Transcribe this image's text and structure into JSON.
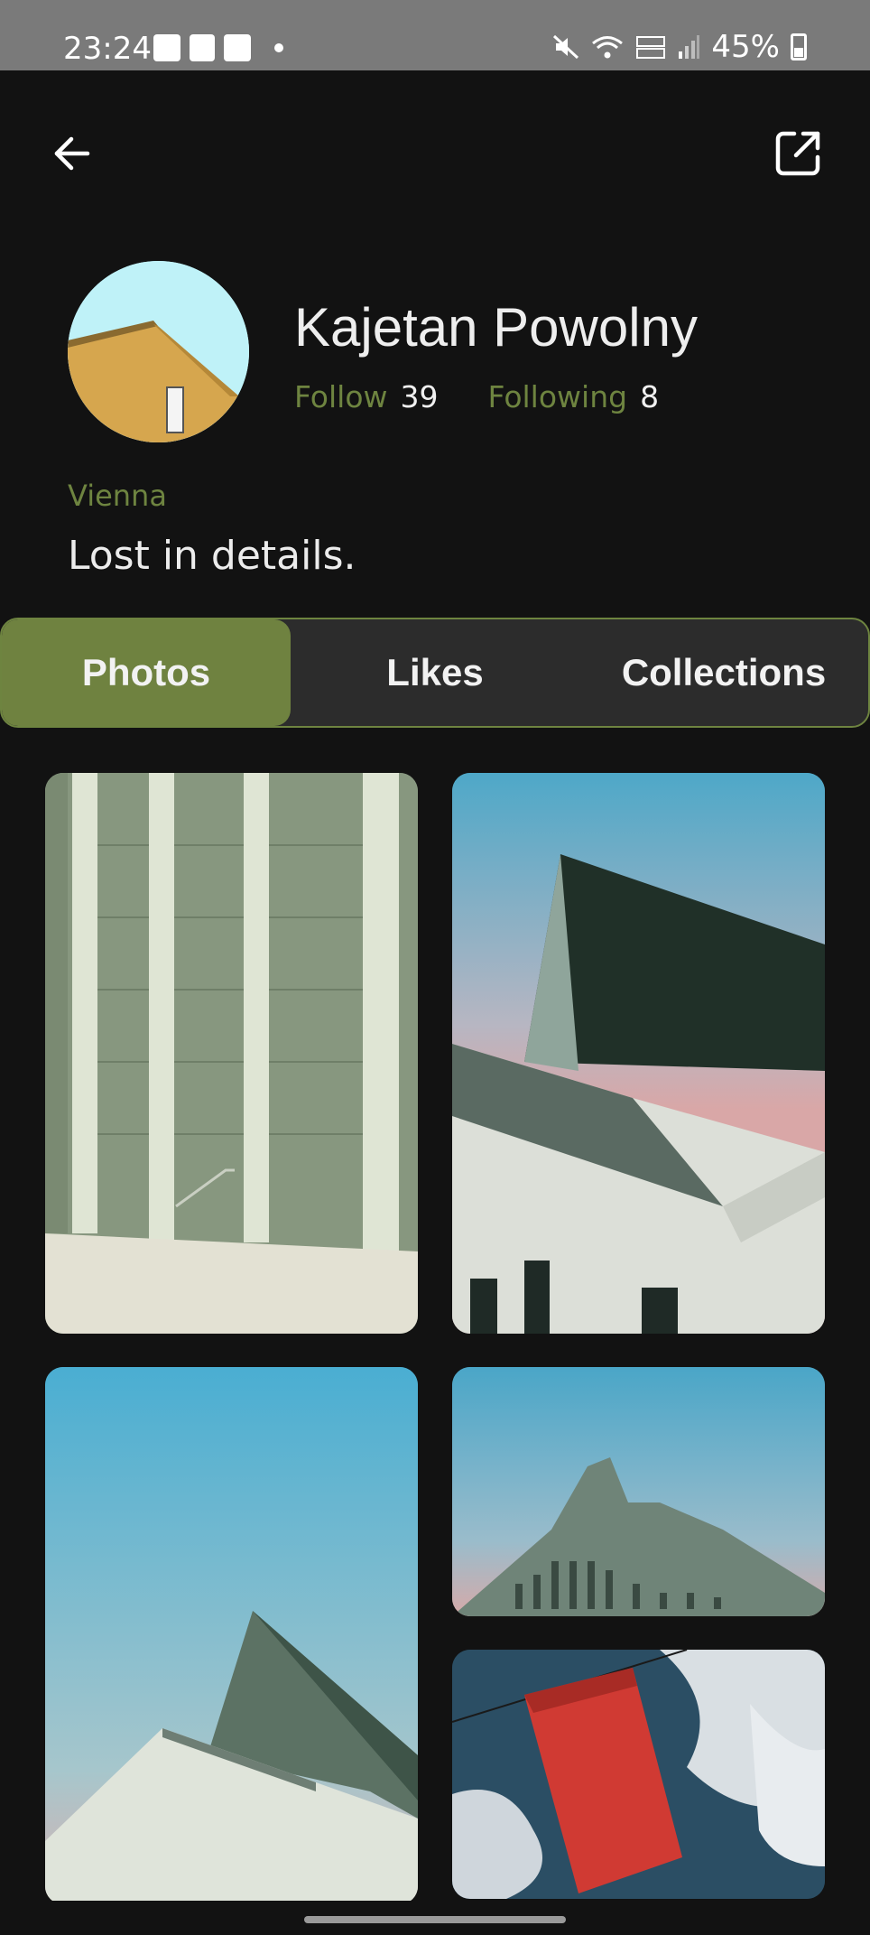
{
  "status_bar": {
    "time": "23:24",
    "battery": "45%",
    "left_icons": [
      "gallery-icon",
      "device-icon",
      "checkbox-icon",
      "dot-icon"
    ],
    "right_icons": [
      "mute-icon",
      "wifi-icon",
      "volte-icon",
      "signal-icon",
      "battery-icon"
    ]
  },
  "header": {
    "back_icon": "arrow-left-icon",
    "share_icon": "external-link-icon"
  },
  "profile": {
    "name": "Kajetan Powolny",
    "follow_label": "Follow",
    "follow_count": "39",
    "following_label": "Following",
    "following_count": "8",
    "location": "Vienna",
    "bio": "Lost in details."
  },
  "tabs": [
    {
      "label": "Photos",
      "active": true
    },
    {
      "label": "Likes",
      "active": false
    },
    {
      "label": "Collections",
      "active": false
    }
  ],
  "colors": {
    "background": "#121212",
    "accent": "#6f8240",
    "accent_text": "#6e8440",
    "tab_bar": "#2c2c2c"
  }
}
